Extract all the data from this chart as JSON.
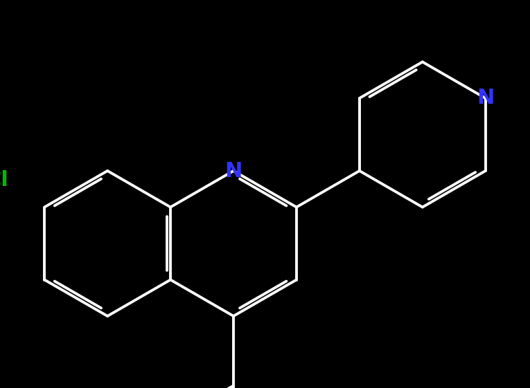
{
  "bg_color": "#000000",
  "bond_color": "#ffffff",
  "bond_width": 2.8,
  "atom_colors": {
    "N_quinoline": "#3333ff",
    "N_pyridine": "#3333ff",
    "Cl": "#00bb00",
    "O": "#ff0000",
    "OH": "#ff0000"
  },
  "font_size_N": 22,
  "font_size_Cl": 22,
  "font_size_O": 22,
  "font_size_OH": 22
}
